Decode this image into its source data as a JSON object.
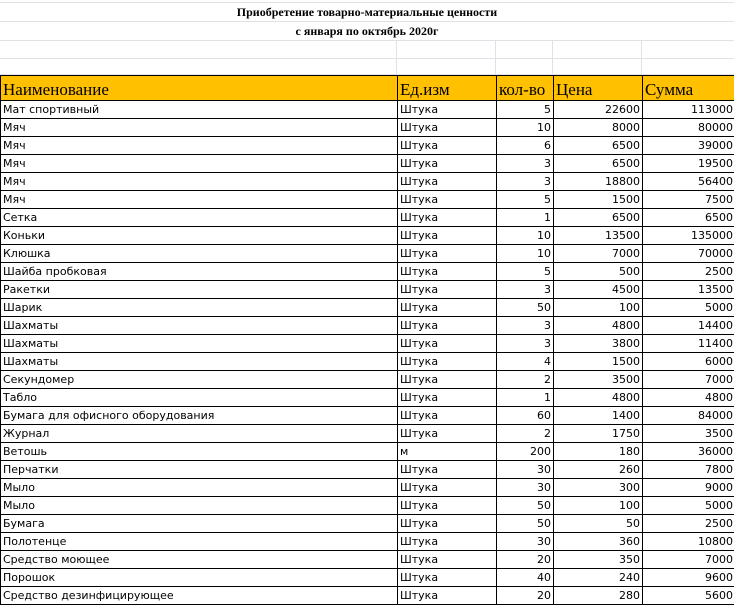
{
  "title_line1": "Приобретение товарно-материальные ценности",
  "title_line2": "с января по октябрь  2020г",
  "header_color": "#ffc000",
  "columns": [
    "Наименование",
    "Ед.изм",
    "кол-во",
    "Цена",
    "Сумма"
  ],
  "rows": [
    [
      "Мат спортивный",
      "Штука",
      "5",
      "22600",
      "113000"
    ],
    [
      "Мяч",
      "Штука",
      "10",
      "8000",
      "80000"
    ],
    [
      "Мяч",
      "Штука",
      "6",
      "6500",
      "39000"
    ],
    [
      "Мяч",
      "Штука",
      "3",
      "6500",
      "19500"
    ],
    [
      "Мяч",
      "Штука",
      "3",
      "18800",
      "56400"
    ],
    [
      "Мяч",
      "Штука",
      "5",
      "1500",
      "7500"
    ],
    [
      "Сетка",
      "Штука",
      "1",
      "6500",
      "6500"
    ],
    [
      "Коньки",
      "Штука",
      "10",
      "13500",
      "135000"
    ],
    [
      "Клюшка",
      "Штука",
      "10",
      "7000",
      "70000"
    ],
    [
      "Шайба пробковая",
      "Штука",
      "5",
      "500",
      "2500"
    ],
    [
      "Ракетки",
      "Штука",
      "3",
      "4500",
      "13500"
    ],
    [
      "Шарик",
      "Штука",
      "50",
      "100",
      "5000"
    ],
    [
      "Шахматы",
      "Штука",
      "3",
      "4800",
      "14400"
    ],
    [
      "Шахматы",
      "Штука",
      "3",
      "3800",
      "11400"
    ],
    [
      "Шахматы",
      "Штука",
      "4",
      "1500",
      "6000"
    ],
    [
      "Секундомер",
      "Штука",
      "2",
      "3500",
      "7000"
    ],
    [
      "Табло",
      "Штука",
      "1",
      "4800",
      "4800"
    ],
    [
      "Бумага для офисного оборудования",
      "Штука",
      "60",
      "1400",
      "84000"
    ],
    [
      "Журнал",
      "Штука",
      "2",
      "1750",
      "3500"
    ],
    [
      "Ветошь",
      "м",
      "200",
      "180",
      "36000"
    ],
    [
      "Перчатки",
      "Штука",
      "30",
      "260",
      "7800"
    ],
    [
      "Мыло",
      "Штука",
      "30",
      "300",
      "9000"
    ],
    [
      "Мыло",
      "Штука",
      "50",
      "100",
      "5000"
    ],
    [
      "Бумага",
      "Штука",
      "50",
      "50",
      "2500"
    ],
    [
      "Полотенце",
      "Штука",
      "30",
      "360",
      "10800"
    ],
    [
      "Средство моющее",
      "Штука",
      "20",
      "350",
      "7000"
    ],
    [
      "Порошок",
      "Штука",
      "40",
      "240",
      "9600"
    ],
    [
      "Средство дезинфицирующее",
      "Штука",
      "20",
      "280",
      "5600"
    ]
  ]
}
